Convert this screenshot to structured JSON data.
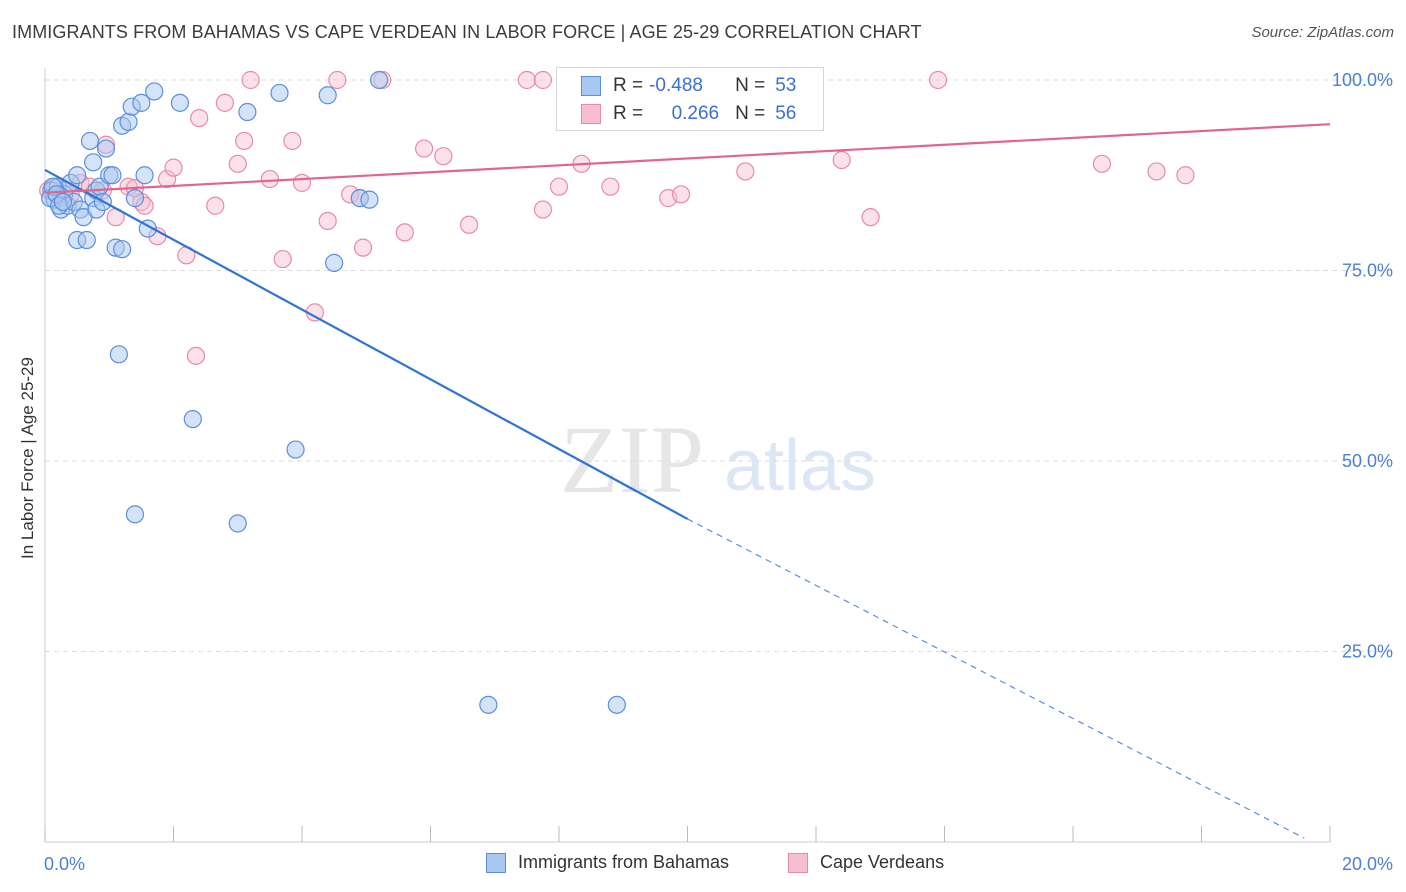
{
  "header": {
    "title": "IMMIGRANTS FROM BAHAMAS VS CAPE VERDEAN IN LABOR FORCE | AGE 25-29 CORRELATION CHART",
    "source": "Source: ZipAtlas.com"
  },
  "watermark": {
    "zip": "ZIP",
    "atlas": "atlas"
  },
  "colors": {
    "blue_fill": "#a9c8f0",
    "blue_stroke": "#5b8fdb",
    "blue_line": "#2f73d6",
    "pink_fill": "#f7bed0",
    "pink_stroke": "#e98aa8",
    "pink_line": "#e0668f",
    "axis_text": "#4a7fd4",
    "grid": "#dddddd"
  },
  "legend": {
    "rows": [
      {
        "r_label": "R =",
        "r_value": "-0.488",
        "n_label": "N =",
        "n_value": "53"
      },
      {
        "r_label": "R =",
        "r_value": "0.266",
        "n_label": "N =",
        "n_value": "56"
      }
    ]
  },
  "chart_data": {
    "type": "scatter",
    "title": "IMMIGRANTS FROM BAHAMAS VS CAPE VERDEAN IN LABOR FORCE | AGE 25-29 CORRELATION CHART",
    "xlabel": "",
    "ylabel": "In Labor Force | Age 25-29",
    "xlim": [
      0,
      20
    ],
    "ylim": [
      0,
      103
    ],
    "x_ticks": [
      "0.0%",
      "20.0%"
    ],
    "y_ticks": [
      {
        "value": 100,
        "label": "100.0%"
      },
      {
        "value": 75,
        "label": "75.0%"
      },
      {
        "value": 50,
        "label": "50.0%"
      },
      {
        "value": 25,
        "label": "25.0%"
      }
    ],
    "grid": true,
    "legend_position": "top-center",
    "series": [
      {
        "name": "Immigrants from Bahamas",
        "r": -0.488,
        "n": 53,
        "trend": {
          "x0": 0.0,
          "y0": 88.2,
          "x1": 10.0,
          "y1": 42.4,
          "dashed_to_x": 19.6,
          "dashed_to_y": 0.5
        },
        "points": [
          [
            0.1,
            85.5
          ],
          [
            0.15,
            84.3
          ],
          [
            0.2,
            86.0
          ],
          [
            0.25,
            83.0
          ],
          [
            0.3,
            85.0
          ],
          [
            0.35,
            83.5
          ],
          [
            0.4,
            86.5
          ],
          [
            0.45,
            84.0
          ],
          [
            0.5,
            79.0
          ],
          [
            0.5,
            87.5
          ],
          [
            0.55,
            83.0
          ],
          [
            0.6,
            82.0
          ],
          [
            0.65,
            79.0
          ],
          [
            0.7,
            92.0
          ],
          [
            0.75,
            84.5
          ],
          [
            0.75,
            89.2
          ],
          [
            0.8,
            85.5
          ],
          [
            0.8,
            83.0
          ],
          [
            0.85,
            86.0
          ],
          [
            0.9,
            84.0
          ],
          [
            0.95,
            91.0
          ],
          [
            1.0,
            87.5
          ],
          [
            1.05,
            87.5
          ],
          [
            1.1,
            78.0
          ],
          [
            1.15,
            64.0
          ],
          [
            1.2,
            94.0
          ],
          [
            1.2,
            77.8
          ],
          [
            1.3,
            94.5
          ],
          [
            1.35,
            96.5
          ],
          [
            1.4,
            84.5
          ],
          [
            1.5,
            97.0
          ],
          [
            1.55,
            87.5
          ],
          [
            1.6,
            80.5
          ],
          [
            1.7,
            98.5
          ],
          [
            1.4,
            43.0
          ],
          [
            2.1,
            97.0
          ],
          [
            2.3,
            55.5
          ],
          [
            3.0,
            41.8
          ],
          [
            3.15,
            95.8
          ],
          [
            3.65,
            98.3
          ],
          [
            3.9,
            51.5
          ],
          [
            4.4,
            98.0
          ],
          [
            4.5,
            76.0
          ],
          [
            4.9,
            84.5
          ],
          [
            5.05,
            84.3
          ],
          [
            5.2,
            100.0
          ],
          [
            6.9,
            18.0
          ],
          [
            8.9,
            18.0
          ],
          [
            0.08,
            84.5
          ],
          [
            0.12,
            86.0
          ],
          [
            0.18,
            85.0
          ],
          [
            0.22,
            83.5
          ],
          [
            0.28,
            84.0
          ]
        ]
      },
      {
        "name": "Cape Verdeans",
        "r": 0.266,
        "n": 56,
        "trend": {
          "x0": 0.0,
          "y0": 85.2,
          "x1": 20.0,
          "y1": 94.2
        },
        "points": [
          [
            0.05,
            85.5
          ],
          [
            0.15,
            86.0
          ],
          [
            0.25,
            84.5
          ],
          [
            0.3,
            85.5
          ],
          [
            0.55,
            86.5
          ],
          [
            0.7,
            86.0
          ],
          [
            0.9,
            85.5
          ],
          [
            0.95,
            91.5
          ],
          [
            1.1,
            82.0
          ],
          [
            1.3,
            86.0
          ],
          [
            1.5,
            84.0
          ],
          [
            1.55,
            83.5
          ],
          [
            1.75,
            79.5
          ],
          [
            1.9,
            87.0
          ],
          [
            2.0,
            88.5
          ],
          [
            2.2,
            77.0
          ],
          [
            2.35,
            63.8
          ],
          [
            2.4,
            95.0
          ],
          [
            2.65,
            83.5
          ],
          [
            2.8,
            97.0
          ],
          [
            3.0,
            89.0
          ],
          [
            3.1,
            92.0
          ],
          [
            3.2,
            100.0
          ],
          [
            3.5,
            87.0
          ],
          [
            3.7,
            76.5
          ],
          [
            3.85,
            92.0
          ],
          [
            4.0,
            86.5
          ],
          [
            4.2,
            69.5
          ],
          [
            4.4,
            81.5
          ],
          [
            4.55,
            100.0
          ],
          [
            4.75,
            85.0
          ],
          [
            4.9,
            84.5
          ],
          [
            4.95,
            78.0
          ],
          [
            5.25,
            100.0
          ],
          [
            5.6,
            80.0
          ],
          [
            5.9,
            91.0
          ],
          [
            6.2,
            90.0
          ],
          [
            6.6,
            81.0
          ],
          [
            7.5,
            100.0
          ],
          [
            7.75,
            100.0
          ],
          [
            7.75,
            83.0
          ],
          [
            8.0,
            86.0
          ],
          [
            8.35,
            89.0
          ],
          [
            8.8,
            86.0
          ],
          [
            9.7,
            84.5
          ],
          [
            9.9,
            85.0
          ],
          [
            10.9,
            88.0
          ],
          [
            11.5,
            100.0
          ],
          [
            12.4,
            89.5
          ],
          [
            12.85,
            82.0
          ],
          [
            13.9,
            100.0
          ],
          [
            16.45,
            89.0
          ],
          [
            17.3,
            88.0
          ],
          [
            17.75,
            87.5
          ],
          [
            1.4,
            85.8
          ],
          [
            0.4,
            85.0
          ]
        ]
      }
    ]
  },
  "bottom_legend": {
    "items": [
      {
        "label": "Immigrants from Bahamas"
      },
      {
        "label": "Cape Verdeans"
      }
    ]
  }
}
